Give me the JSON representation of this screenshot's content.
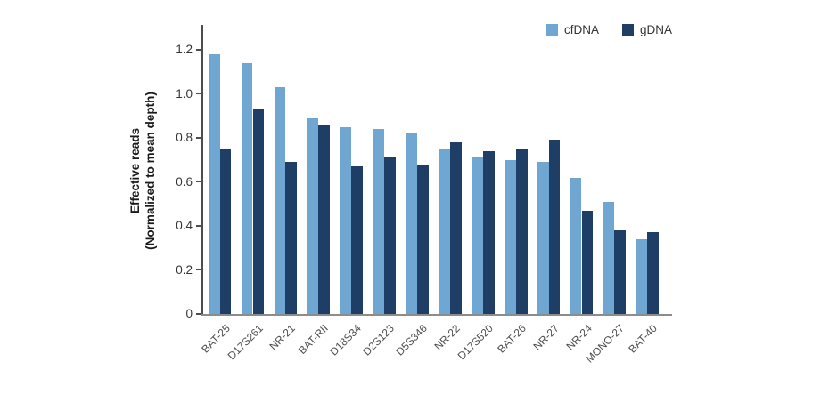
{
  "chart_data": {
    "type": "bar",
    "title": "",
    "ylabel_line1": "Effective reads",
    "ylabel_line2": "(Normalized to mean depth)",
    "xlabel": "",
    "categories": [
      "BAT-25",
      "D17S261",
      "NR-21",
      "BAT-RII",
      "D18S34",
      "D2S123",
      "D5S346",
      "NR-22",
      "D17S520",
      "BAT-26",
      "NR-27",
      "NR-24",
      "MONO-27",
      "BAT-40"
    ],
    "series": [
      {
        "name": "cfDNA",
        "color": "#6FA6D2",
        "values": [
          1.18,
          1.14,
          1.03,
          0.89,
          0.85,
          0.84,
          0.82,
          0.75,
          0.71,
          0.7,
          0.69,
          0.62,
          0.51,
          0.34
        ]
      },
      {
        "name": "gDNA",
        "color": "#1F3E66",
        "values": [
          0.75,
          0.93,
          0.69,
          0.86,
          0.67,
          0.71,
          0.68,
          0.78,
          0.74,
          0.75,
          0.79,
          0.47,
          0.38,
          0.37
        ]
      }
    ],
    "y_ticks": [
      0,
      0.2,
      0.4,
      0.6,
      0.8,
      1.0,
      1.2
    ],
    "y_tick_labels": [
      "0",
      "0.2",
      "0.4",
      "0.6",
      "0.8",
      "1.0",
      "1.2"
    ],
    "ylim": [
      0,
      1.3
    ],
    "grid": false,
    "legend_position": "top-right",
    "axis_color": "#4d4d4d",
    "baseline_color": "#8c8c8c"
  }
}
